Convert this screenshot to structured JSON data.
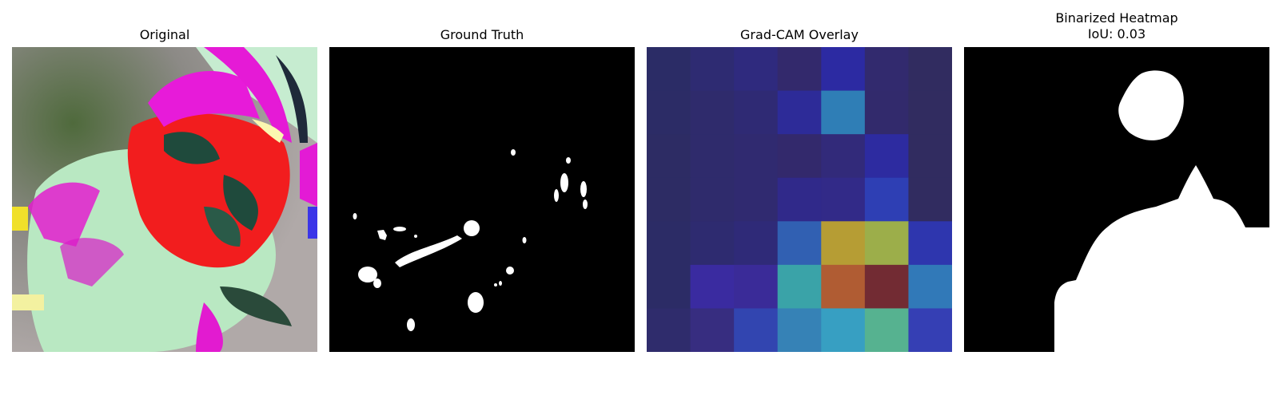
{
  "panels": [
    {
      "id": "original",
      "title": "Original"
    },
    {
      "id": "ground_truth",
      "title": "Ground Truth"
    },
    {
      "id": "gradcam",
      "title": "Grad-CAM Overlay"
    },
    {
      "id": "binarized",
      "title": "Binarized Heatmap",
      "subtitle": "IoU: 0.03"
    }
  ],
  "gradcam_grid": {
    "rows": 7,
    "cols": 7,
    "colors": [
      [
        "#2b2c66",
        "#2e2b72",
        "#2f2a7e",
        "#33296c",
        "#2c2aa2",
        "#322a6e",
        "#312c60"
      ],
      [
        "#2c2c66",
        "#2f2b6c",
        "#2f2a74",
        "#2d2b98",
        "#2f7eb6",
        "#322a6c",
        "#312c60"
      ],
      [
        "#2d2c64",
        "#2f2b6c",
        "#302a70",
        "#33296c",
        "#322a7a",
        "#2d2ba0",
        "#312c60"
      ],
      [
        "#2d2c64",
        "#2f2b6c",
        "#302a70",
        "#30298a",
        "#322a88",
        "#2e3fb4",
        "#312c60"
      ],
      [
        "#2c2c66",
        "#2e2b70",
        "#2f2a78",
        "#3160b2",
        "#b69d34",
        "#9cae4a",
        "#2e36ae"
      ],
      [
        "#2c2c66",
        "#3a2ba0",
        "#3a2b98",
        "#3aa3a8",
        "#b05c33",
        "#722b33",
        "#3179b8"
      ],
      [
        "#2f2c6c",
        "#372d80",
        "#3245b0",
        "#3682b6",
        "#379fc2",
        "#56b290",
        "#353fb4"
      ]
    ]
  }
}
